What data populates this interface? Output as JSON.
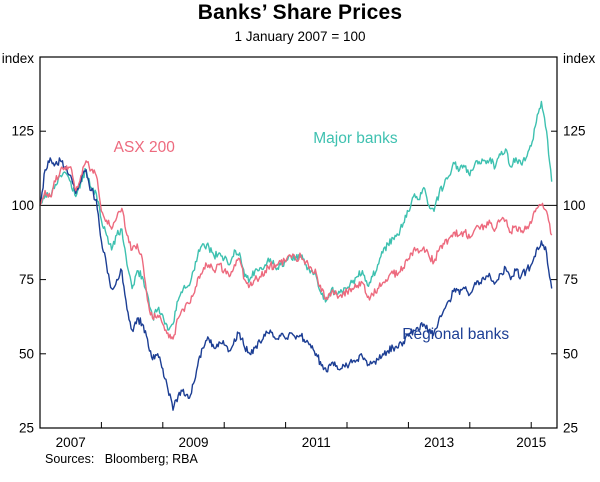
{
  "footer": {
    "sources": "Sources:   Bloomberg; RBA"
  },
  "axes": {
    "unit_label": "index",
    "ylim": [
      25,
      150
    ],
    "xlim": [
      2007.0,
      2015.42
    ],
    "y_ticks": [
      25,
      50,
      75,
      100,
      125
    ],
    "reference_line": 100,
    "x_minor_ticks": [
      2008,
      2009,
      2010,
      2011,
      2012,
      2013,
      2014,
      2015
    ],
    "x_labels": [
      {
        "text": "2007",
        "x": 2007.5
      },
      {
        "text": "2009",
        "x": 2009.5
      },
      {
        "text": "2011",
        "x": 2011.5
      },
      {
        "text": "2013",
        "x": 2013.5
      },
      {
        "text": "2015",
        "x": 2015.0
      }
    ]
  },
  "chart_data": {
    "type": "line",
    "title": "Banks’ Share Prices",
    "subtitle": "1 January 2007 = 100",
    "ylabel": "index",
    "ylim": [
      25,
      150
    ],
    "grid": "reference line at 100 only",
    "legend_position": "inline labels",
    "x_start": 2007.0,
    "x_step": 0.083333,
    "x_note": "monthly points, Jan 2007 to May 2015",
    "series": [
      {
        "name": "Major banks",
        "color": "#3ec1b0",
        "label": {
          "text": "Major banks",
          "x": 2011.45,
          "y": 121
        },
        "values": [
          100,
          104,
          103,
          107,
          110,
          111,
          108,
          103,
          108,
          112,
          106,
          104,
          95,
          90,
          85,
          90,
          92,
          80,
          72,
          78,
          76,
          70,
          62,
          65,
          63,
          58,
          60,
          68,
          72,
          73,
          78,
          85,
          87,
          86,
          83,
          84,
          82,
          80,
          85,
          84,
          76,
          75,
          78,
          79,
          80,
          82,
          79,
          80,
          81,
          83,
          82,
          83,
          80,
          78,
          76,
          70,
          68,
          72,
          70,
          71,
          72,
          74,
          76,
          78,
          73,
          76,
          80,
          84,
          87,
          89,
          90,
          94,
          98,
          103,
          102,
          106,
          100,
          98,
          104,
          107,
          110,
          114,
          112,
          113,
          110,
          114,
          114,
          115,
          116,
          113,
          117,
          119,
          113,
          116,
          114,
          116,
          120,
          128,
          135,
          125,
          108
        ]
      },
      {
        "name": "Regional banks",
        "color": "#1c3e94",
        "label": {
          "text": "Regional banks",
          "x": 2012.9,
          "y": 55
        },
        "values": [
          100,
          112,
          116,
          114,
          115,
          113,
          110,
          104,
          108,
          112,
          105,
          102,
          88,
          80,
          72,
          75,
          78,
          65,
          58,
          62,
          60,
          55,
          48,
          50,
          45,
          38,
          31,
          36,
          38,
          35,
          40,
          48,
          52,
          55,
          52,
          54,
          53,
          51,
          55,
          57,
          52,
          50,
          52,
          54,
          56,
          58,
          55,
          56,
          55,
          57,
          55,
          56,
          54,
          52,
          50,
          46,
          44,
          47,
          46,
          45,
          46,
          47,
          48,
          49,
          46,
          47,
          48,
          50,
          51,
          52,
          52,
          54,
          56,
          58,
          58,
          60,
          58,
          57,
          62,
          65,
          68,
          72,
          70,
          72,
          70,
          74,
          74,
          75,
          76,
          74,
          77,
          79,
          75,
          78,
          76,
          78,
          80,
          85,
          88,
          84,
          72
        ]
      },
      {
        "name": "ASX 200",
        "color": "#ed6a7e",
        "label": {
          "text": "ASX 200",
          "x": 2008.2,
          "y": 118
        },
        "values": [
          100,
          105,
          103,
          108,
          112,
          112,
          113,
          105,
          110,
          115,
          112,
          110,
          98,
          95,
          92,
          96,
          99,
          90,
          85,
          87,
          82,
          68,
          62,
          63,
          60,
          57,
          55,
          62,
          65,
          67,
          70,
          76,
          79,
          80,
          78,
          80,
          78,
          76,
          80,
          82,
          75,
          73,
          75,
          76,
          78,
          80,
          79,
          81,
          81,
          83,
          82,
          83,
          81,
          79,
          77,
          71,
          69,
          71,
          70,
          69,
          71,
          72,
          73,
          74,
          69,
          70,
          72,
          74,
          75,
          77,
          77,
          79,
          82,
          85,
          84,
          86,
          83,
          81,
          85,
          87,
          89,
          91,
          90,
          91,
          89,
          92,
          92,
          93,
          94,
          92,
          95,
          95,
          91,
          93,
          91,
          92,
          94,
          99,
          100,
          98,
          90
        ]
      }
    ]
  }
}
